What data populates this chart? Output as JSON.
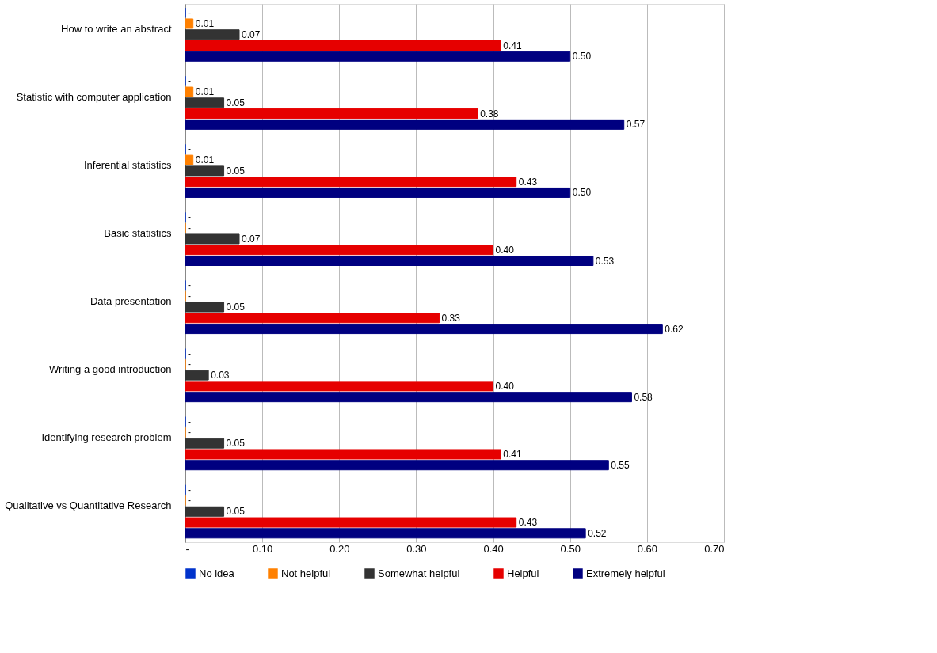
{
  "chart_data": {
    "type": "bar",
    "orientation": "horizontal",
    "categories": [
      "How to write an abstract",
      "Statistic with computer application",
      "Inferential statistics",
      "Basic statistics",
      "Data presentation",
      "Writing a good introduction",
      "Identifying research problem",
      "Qualitative vs Quantitative Research"
    ],
    "series": [
      {
        "name": "No idea",
        "color": "#0033cc",
        "values": [
          0,
          0,
          0,
          0,
          0,
          0,
          0,
          0
        ],
        "value_labels": [
          "-",
          "-",
          "-",
          "-",
          "-",
          "-",
          "-",
          "-"
        ]
      },
      {
        "name": "Not helpful",
        "color": "#ff8000",
        "values": [
          0.01,
          0.01,
          0.01,
          0,
          0,
          0,
          0,
          0
        ],
        "value_labels": [
          "0.01",
          "0.01",
          "0.01",
          "-",
          "-",
          "-",
          "-",
          "-"
        ]
      },
      {
        "name": "Somewhat helpful",
        "color": "#333333",
        "values": [
          0.07,
          0.05,
          0.05,
          0.07,
          0.05,
          0.03,
          0.05,
          0.05
        ],
        "value_labels": [
          "0.07",
          "0.05",
          "0.05",
          "0.07",
          "0.05",
          "0.03",
          "0.05",
          "0.05"
        ]
      },
      {
        "name": "Helpful",
        "color": "#e60000",
        "values": [
          0.41,
          0.38,
          0.43,
          0.4,
          0.33,
          0.4,
          0.41,
          0.43
        ],
        "value_labels": [
          "0.41",
          "0.38",
          "0.43",
          "0.40",
          "0.33",
          "0.40",
          "0.41",
          "0.43"
        ]
      },
      {
        "name": "Extremely helpful",
        "color": "#000080",
        "values": [
          0.5,
          0.57,
          0.5,
          0.53,
          0.62,
          0.58,
          0.55,
          0.52
        ],
        "value_labels": [
          "0.50",
          "0.57",
          "0.50",
          "0.53",
          "0.62",
          "0.58",
          "0.55",
          "0.52"
        ]
      }
    ],
    "xlim": [
      0,
      0.7
    ],
    "xticks": [
      {
        "value": 0,
        "label": "-"
      },
      {
        "value": 0.1,
        "label": "0.10"
      },
      {
        "value": 0.2,
        "label": "0.20"
      },
      {
        "value": 0.3,
        "label": "0.30"
      },
      {
        "value": 0.4,
        "label": "0.40"
      },
      {
        "value": 0.5,
        "label": "0.50"
      },
      {
        "value": 0.6,
        "label": "0.60"
      },
      {
        "value": 0.7,
        "label": "0.70"
      }
    ],
    "grid": "x",
    "legend": "bottom"
  }
}
